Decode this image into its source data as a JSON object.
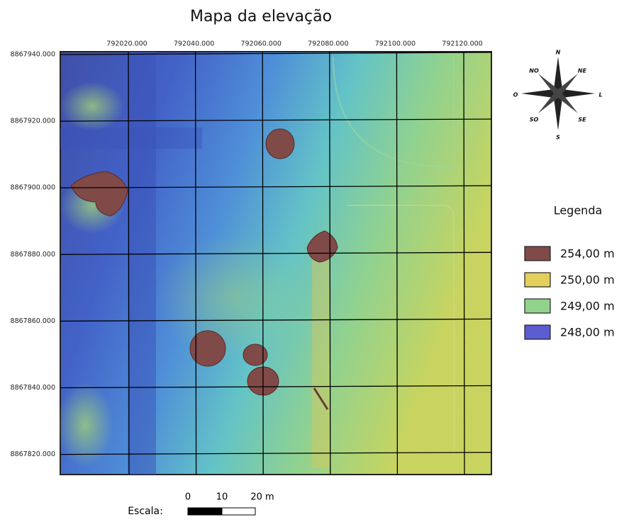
{
  "header": {
    "title": "Mapa da elevação"
  },
  "map": {
    "x_labels": [
      "792020.000",
      "792040.000",
      "792060.000",
      "792080.000",
      "792100.000",
      "792120.000"
    ],
    "y_labels": [
      "8867940.000",
      "8867920.000",
      "8867900.000",
      "8867880.000",
      "8867860.000",
      "8867840.000",
      "8867820.000"
    ]
  },
  "compass": {
    "n": "N",
    "ne": "NE",
    "e": "L",
    "se": "SE",
    "s": "S",
    "sw": "SO",
    "w": "O",
    "nw": "NO"
  },
  "legend": {
    "title": "Legenda",
    "items": [
      {
        "label": "254,00 m",
        "color": "#7f4a47"
      },
      {
        "label": "250,00 m",
        "color": "#e3cf5c"
      },
      {
        "label": "249,00 m",
        "color": "#8fd48a"
      },
      {
        "label": "248,00 m",
        "color": "#5a5cd0"
      }
    ]
  },
  "scale": {
    "title": "Escala:",
    "labels": [
      "0",
      "10",
      "20 m"
    ]
  }
}
